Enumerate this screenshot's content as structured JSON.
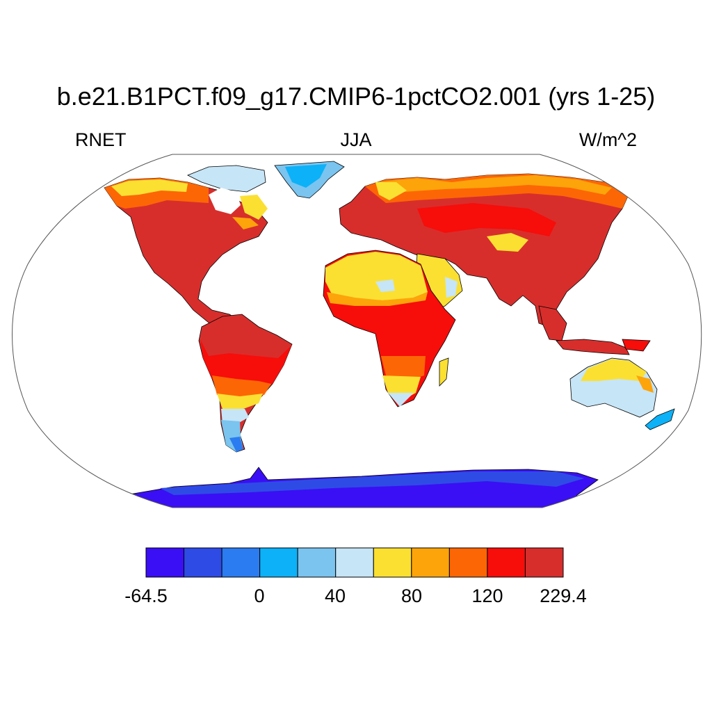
{
  "title": "b.e21.B1PCT.f09_g17.CMIP6-1pctCO2.001 (yrs 1-25)",
  "left_label": "RNET",
  "center_label": "JJA",
  "right_label": "W/m^2",
  "colorbar": {
    "colors": [
      "#3a0ff5",
      "#2e4be6",
      "#2b7cf0",
      "#0cb1f7",
      "#7ac4ef",
      "#c6e5f7",
      "#fbe032",
      "#fda40a",
      "#fd6605",
      "#f70d0a",
      "#d72e2c"
    ],
    "tick_labels": [
      "-64.5",
      "0",
      "40",
      "80",
      "120",
      "229.4"
    ]
  },
  "map": {
    "projection": "Robinson",
    "ocean_color": "#ffffff",
    "outline_color": "#555555"
  }
}
